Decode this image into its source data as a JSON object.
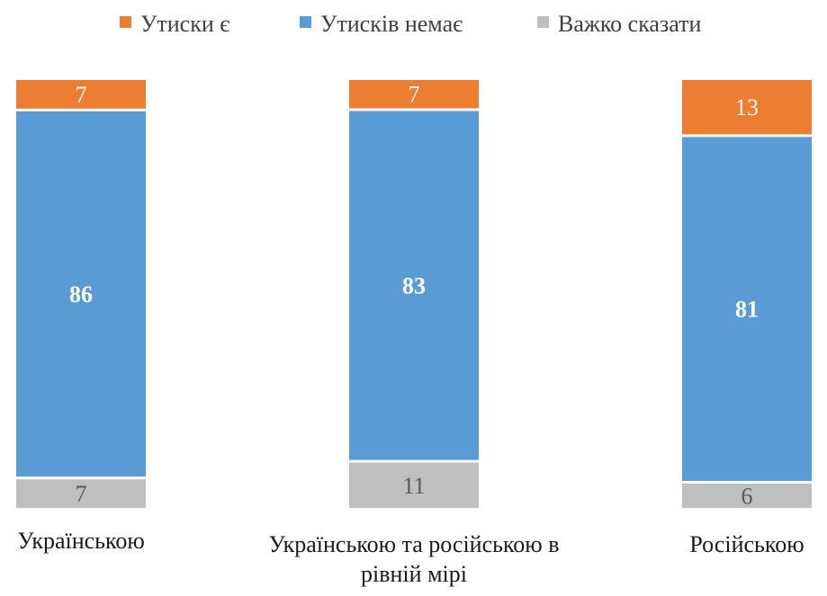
{
  "chart_data": {
    "type": "bar",
    "stacked": true,
    "percent_stacked": true,
    "categories": [
      [
        "Українською"
      ],
      [
        "Українською та російською в",
        "рівній мірі"
      ],
      [
        "Російською"
      ]
    ],
    "series": [
      {
        "name": "Утиски є",
        "color": "#ED7D31",
        "values": [
          7,
          7,
          13
        ],
        "label_color": "#ffffff",
        "label_bold": false
      },
      {
        "name": "Утисків немає",
        "color": "#5B9BD5",
        "values": [
          86,
          83,
          81
        ],
        "label_color": "#ffffff",
        "label_bold": true
      },
      {
        "name": "Важко сказати",
        "color": "#BFBFBF",
        "values": [
          7,
          11,
          6
        ],
        "label_color": "#595959",
        "label_bold": false
      }
    ],
    "stack_order_top_to_bottom": [
      "Утиски є",
      "Утисків немає",
      "Важко сказати"
    ],
    "legend_position": "top",
    "grid": false,
    "axes_visible": false
  }
}
